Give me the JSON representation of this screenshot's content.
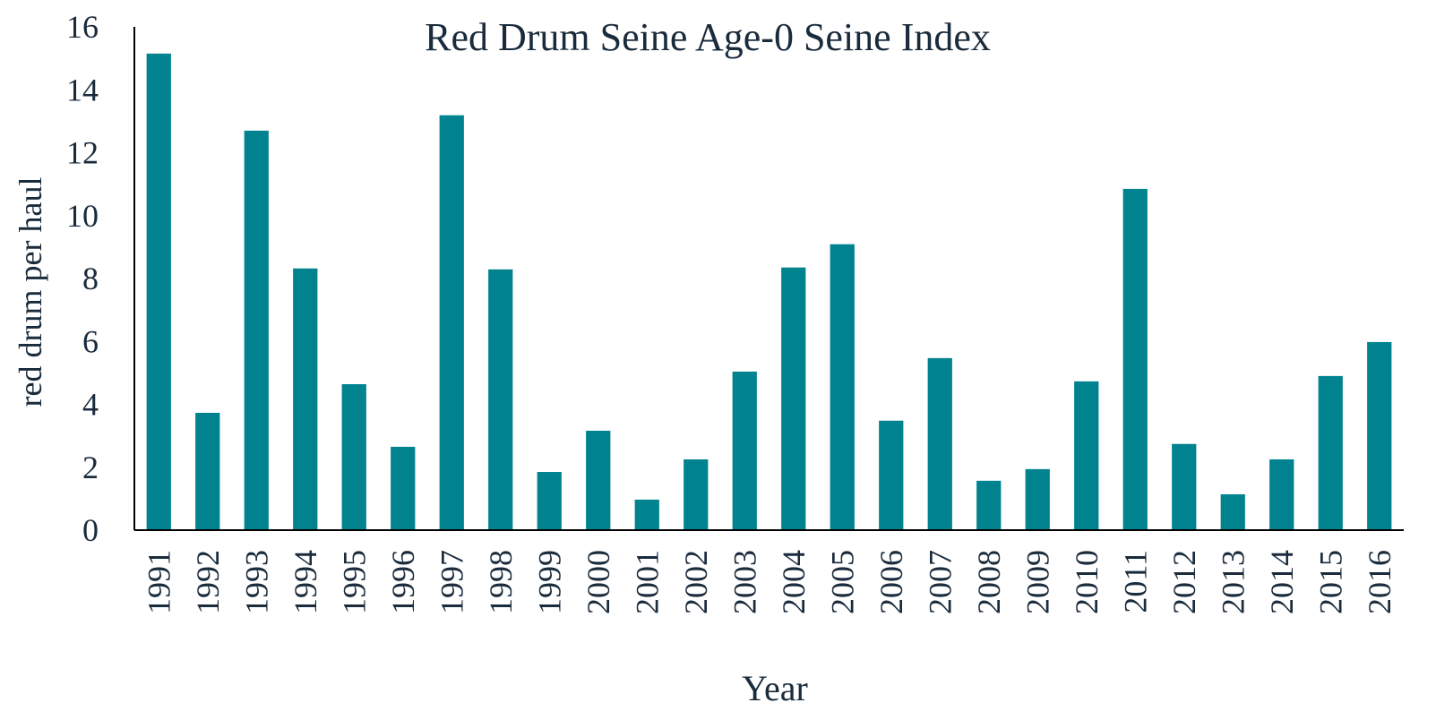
{
  "chart_data": {
    "type": "bar",
    "title": "Red Drum Seine Age-0 Seine Index",
    "x_label": "Year",
    "y_label": "red drum per haul",
    "categories": [
      "1991",
      "1992",
      "1993",
      "1994",
      "1995",
      "1996",
      "1997",
      "1998",
      "1999",
      "2000",
      "2001",
      "2002",
      "2003",
      "2004",
      "2005",
      "2006",
      "2007",
      "2008",
      "2009",
      "2010",
      "2011",
      "2012",
      "2013",
      "2014",
      "2015",
      "2016"
    ],
    "values": [
      15.15,
      3.73,
      12.7,
      8.32,
      4.64,
      2.65,
      13.19,
      8.29,
      1.85,
      3.16,
      0.97,
      2.25,
      5.04,
      8.35,
      9.09,
      3.48,
      5.47,
      1.57,
      1.94,
      4.73,
      10.85,
      2.74,
      1.14,
      2.25,
      4.9,
      5.98
    ],
    "color": "#00838f",
    "ylim": [
      0,
      16
    ],
    "yticks": [
      0,
      2,
      4,
      6,
      8,
      10,
      12,
      14,
      16
    ],
    "grid": false
  }
}
